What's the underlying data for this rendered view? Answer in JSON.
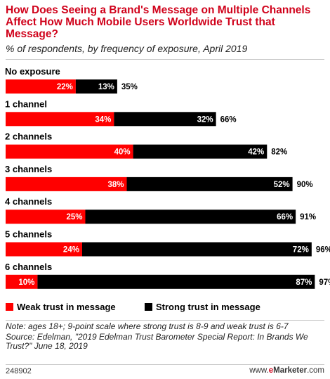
{
  "header": {
    "title": "How Does Seeing a Brand's Message on Multiple Channels Affect How Much Mobile Users Worldwide Trust that Message?",
    "subtitle": "% of respondents, by frequency of exposure, April 2019"
  },
  "legend": {
    "weak_label": "Weak trust in message",
    "strong_label": "Strong trust in message"
  },
  "colors": {
    "weak": "#ff0000",
    "strong": "#000000",
    "title": "#d0021b"
  },
  "footer": {
    "note": "Note: ages 18+; 9-point scale where strong trust is 8-9 and weak trust is 6-7",
    "source": "Source: Edelman, \"2019 Edelman Trust Barometer Special Report: In Brands We Trust?\" June 18, 2019",
    "chart_id": "248902",
    "brand_prefix": "www.",
    "brand_e": "e",
    "brand_name": "Marketer",
    "brand_suffix": ".com"
  },
  "chart_data": {
    "type": "bar",
    "orientation": "horizontal",
    "stacked": true,
    "title": "How Does Seeing a Brand's Message on Multiple Channels Affect How Much Mobile Users Worldwide Trust that Message?",
    "subtitle": "% of respondents, by frequency of exposure, April 2019",
    "categories": [
      "No exposure",
      "1 channel",
      "2 channels",
      "3 channels",
      "4 channels",
      "5 channels",
      "6 channels"
    ],
    "series": [
      {
        "name": "Weak trust in message",
        "values": [
          22,
          34,
          40,
          38,
          25,
          24,
          10
        ]
      },
      {
        "name": "Strong trust in message",
        "values": [
          13,
          32,
          42,
          52,
          66,
          72,
          87
        ]
      }
    ],
    "totals": [
      35,
      66,
      82,
      90,
      91,
      96,
      97
    ],
    "unit": "%",
    "xlim": [
      0,
      100
    ],
    "legend_position": "bottom-left",
    "grid": false
  }
}
